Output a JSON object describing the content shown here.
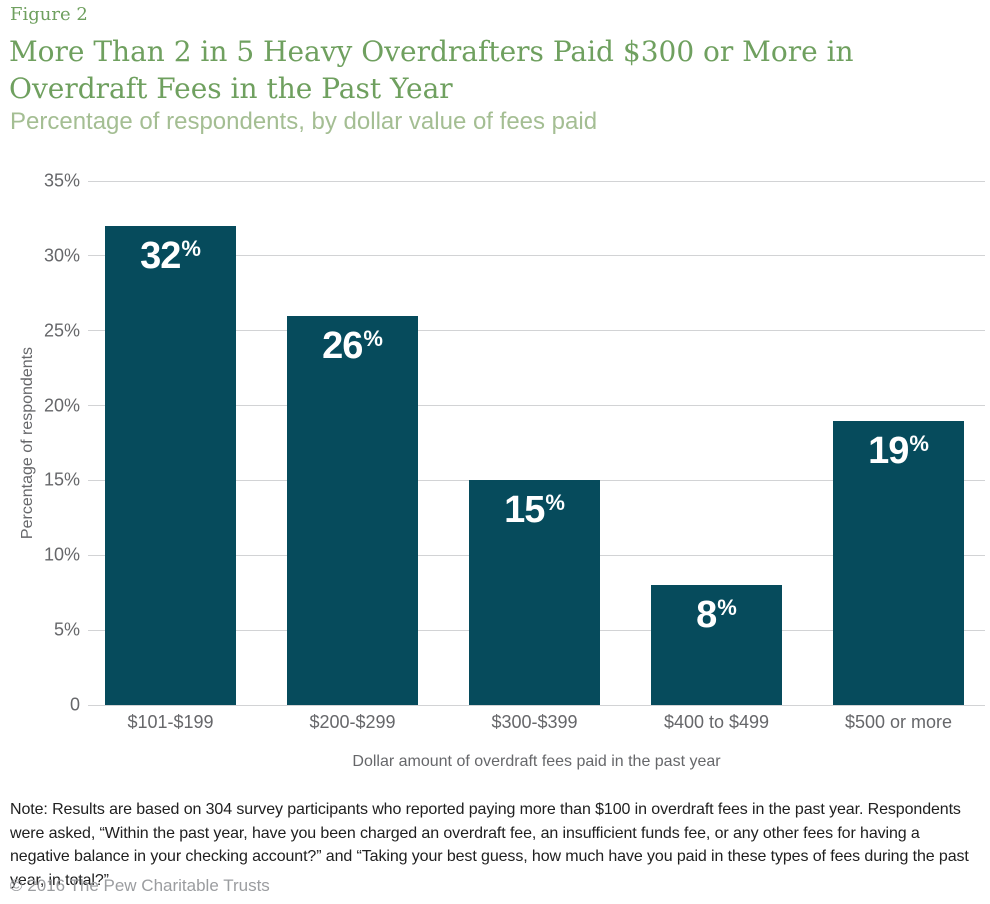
{
  "header": {
    "figure_label": "Figure 2",
    "title": "More Than 2 in 5 Heavy Overdrafters Paid $300 or More in\nOverdraft Fees in the Past Year",
    "subtitle": "Percentage of respondents, by dollar value of fees paid"
  },
  "chart_data": {
    "type": "bar",
    "title": "More Than 2 in 5 Heavy Overdrafters Paid $300 or More in Overdraft Fees in the Past Year",
    "subtitle": "Percentage of respondents, by dollar value of fees paid",
    "categories": [
      "$101-$199",
      "$200-$299",
      "$300-$399",
      "$400 to $499",
      "$500 or more"
    ],
    "values": [
      32,
      26,
      15,
      8,
      19
    ],
    "value_suffix": "%",
    "xlabel": "Dollar amount of overdraft fees paid in the past year",
    "ylabel": "Percentage of respondents",
    "ylim": [
      0,
      35
    ],
    "grid": true,
    "legend": "none",
    "yticks": [
      {
        "value": 35,
        "label": "35%"
      },
      {
        "value": 30,
        "label": "30%"
      },
      {
        "value": 25,
        "label": "25%"
      },
      {
        "value": 20,
        "label": "20%"
      },
      {
        "value": 15,
        "label": "15%"
      },
      {
        "value": 10,
        "label": "10%"
      },
      {
        "value": 5,
        "label": "5%"
      },
      {
        "value": 0,
        "label": "0"
      }
    ]
  },
  "note": "Note: Results are based on 304 survey participants who reported paying more than $100 in overdraft fees in the past year. Respondents were asked, “Within the past year, have you been charged an overdraft fee, an insufficient funds fee, or any other fees for having a negative balance in your checking account?” and “Taking your best guess, how much have you paid in these types of fees during the past year, in total?”",
  "footer": "© 2016 The Pew Charitable Trusts",
  "colors": {
    "bar": "#064B5C",
    "title_green": "#6FA05F",
    "subtitle_green": "#A4BE93",
    "axis_text": "#66676A",
    "gridline": "#D2D3D5",
    "note_text": "#202020",
    "footer_text": "#9B9DA0"
  }
}
